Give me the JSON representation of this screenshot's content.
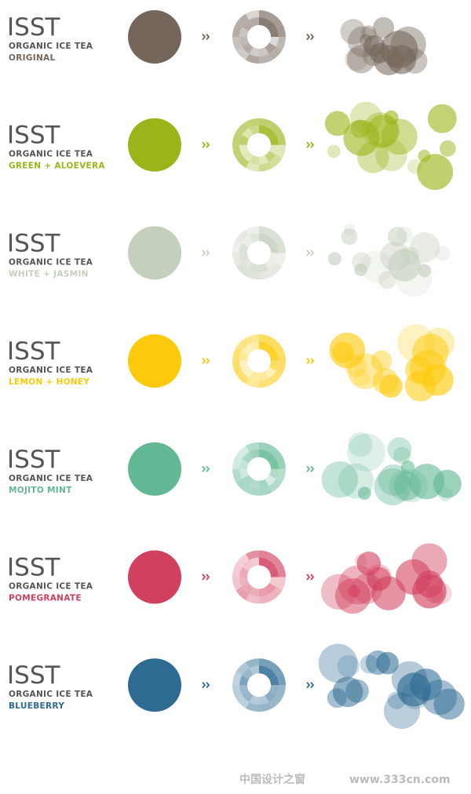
{
  "rows": [
    {
      "brand": "ISST",
      "subtitle": "ORGANIC ICE TEA",
      "flavor": "ORIGINAL",
      "color": "#74665a"
    },
    {
      "brand": "ISST",
      "subtitle": "ORGANIC ICE TEA",
      "flavor": "GREEN + ALOEVERA",
      "color": "#9ab51a"
    },
    {
      "brand": "ISST",
      "subtitle": "ORGANIC ICE TEA",
      "flavor": "WHITE + JASMIN",
      "color": "#c4cfbd"
    },
    {
      "brand": "ISST",
      "subtitle": "ORGANIC ICE TEA",
      "flavor": "LEMON + HONEY",
      "color": "#fdca0b"
    },
    {
      "brand": "ISST",
      "subtitle": "ORGANIC ICE TEA",
      "flavor": "MOJITO MINT",
      "color": "#62b895"
    },
    {
      "brand": "ISST",
      "subtitle": "ORGANIC ICE TEA",
      "flavor": "POMEGRANATE",
      "color": "#d2405f"
    },
    {
      "brand": "ISST",
      "subtitle": "ORGANIC ICE TEA",
      "flavor": "BLUEBERRY",
      "color": "#2d6b93"
    }
  ],
  "watermark": {
    "name": "中国设计之窗",
    "url": "www.333cn.com"
  }
}
